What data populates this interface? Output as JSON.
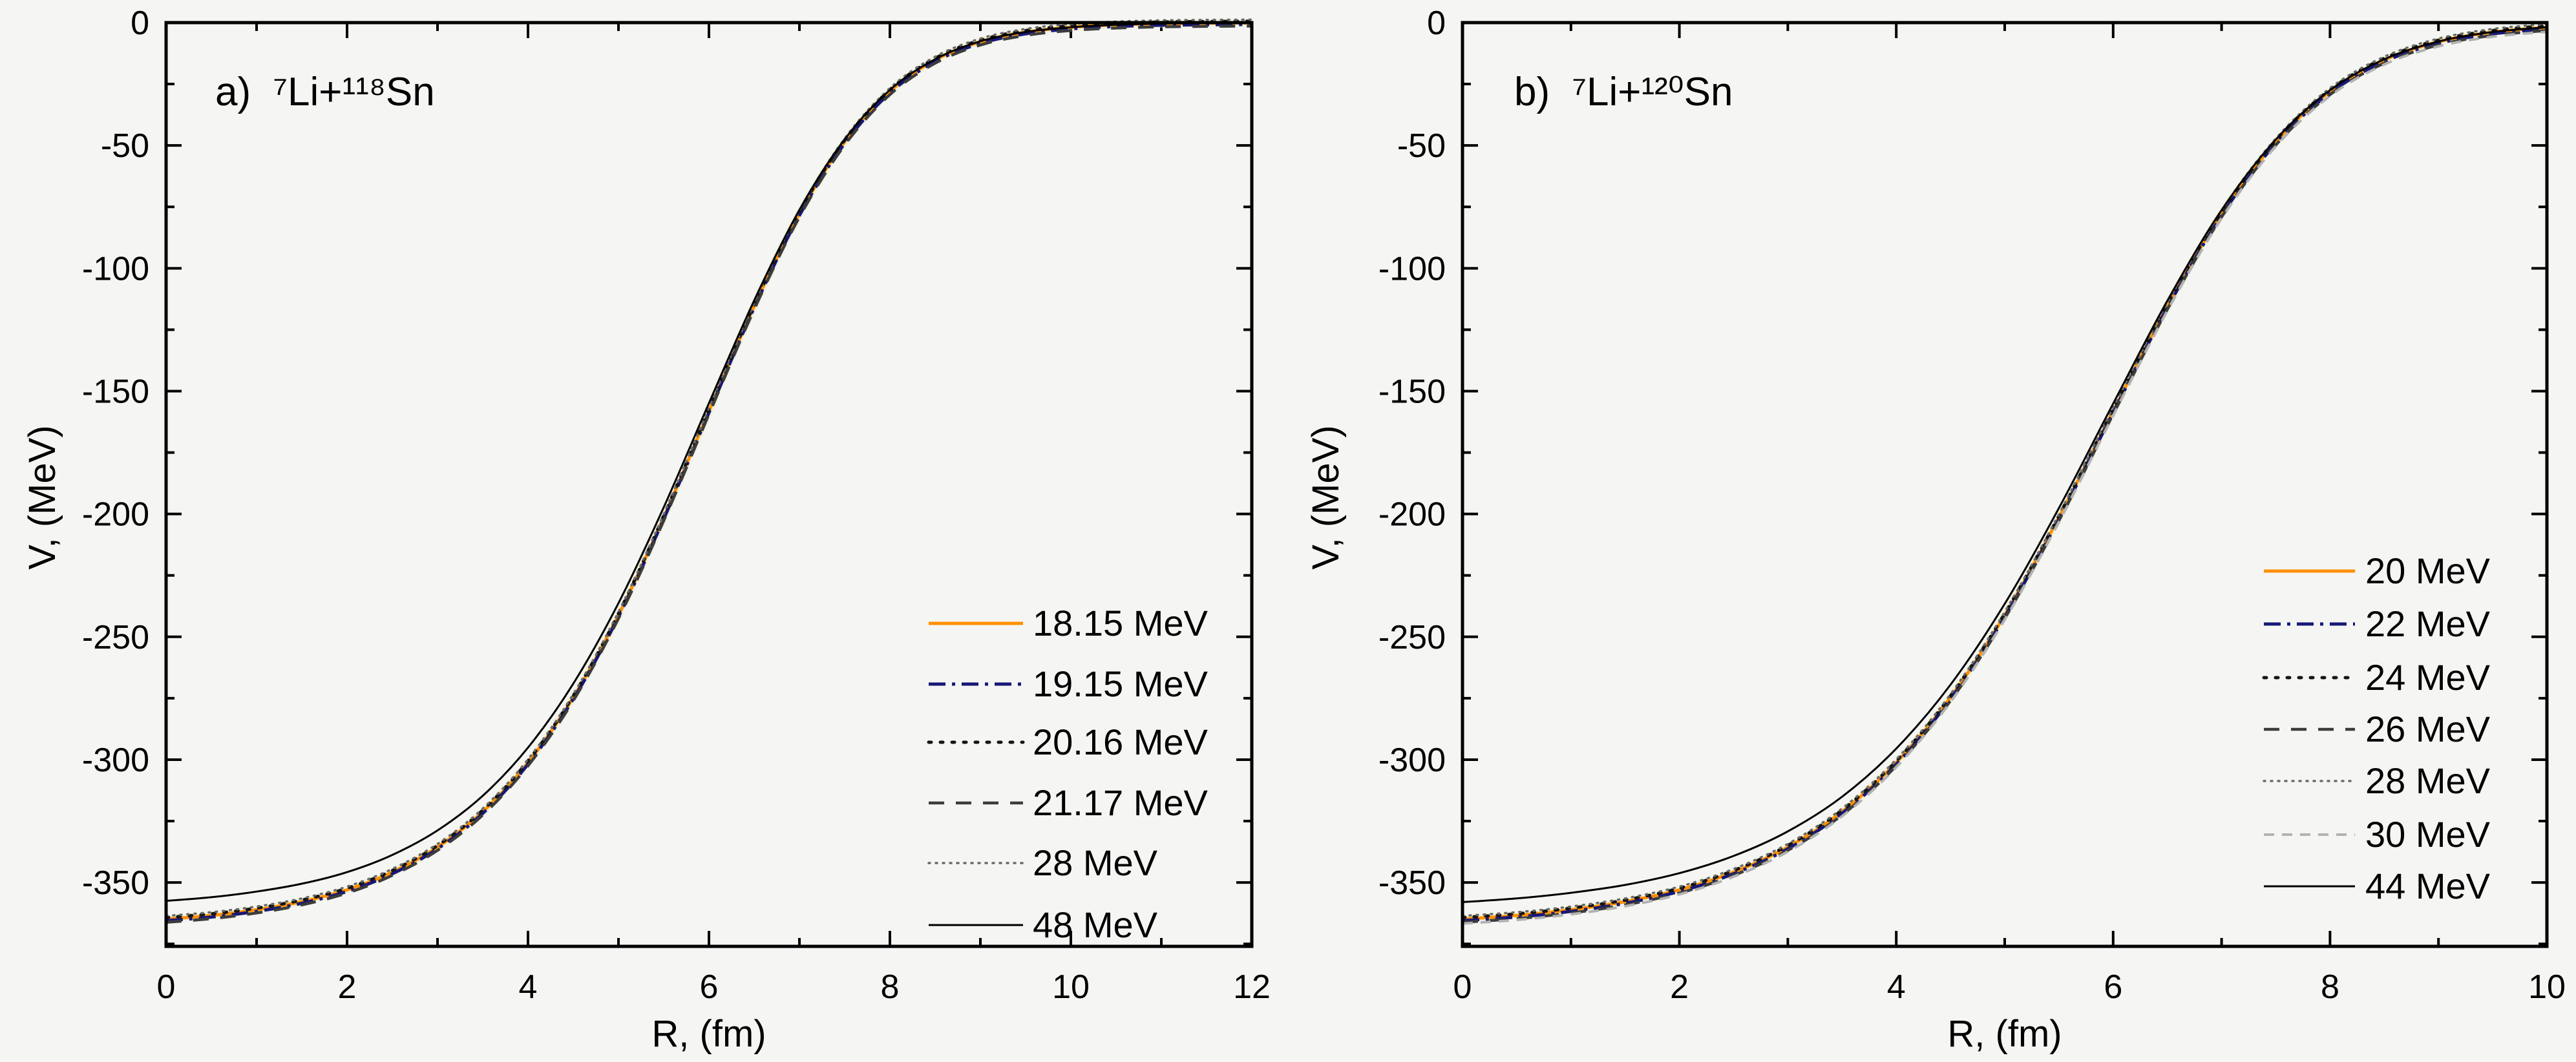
{
  "figure": {
    "background": "#f5f5f3",
    "frame_color": "#000000",
    "tick_color": "#000000",
    "text_color": "#000000",
    "halo_artifact_color": "#edf2d2"
  },
  "chart_data": [
    {
      "type": "line",
      "panel_label": "a",
      "title": "a)  ⁷Li+¹¹⁸Sn",
      "xlabel": "R, (fm)",
      "ylabel": "V, (MeV)",
      "xlim": [
        0,
        12
      ],
      "ylim": [
        -376,
        0
      ],
      "xticks": [
        0,
        2,
        4,
        6,
        8,
        10,
        12
      ],
      "xminorticks": [
        1,
        3,
        5,
        7,
        9,
        11
      ],
      "yticks": [
        0,
        -50,
        -100,
        -150,
        -200,
        -250,
        -300,
        -350
      ],
      "yminorticks": [
        -25,
        -75,
        -125,
        -175,
        -225,
        -275,
        -325,
        -375
      ],
      "grid": false,
      "legend_position": "lower right",
      "x_fm": [
        0,
        0.5,
        1,
        1.5,
        2,
        2.5,
        3,
        3.5,
        4,
        4.5,
        5,
        5.5,
        6,
        6.5,
        7,
        7.5,
        8,
        8.5,
        9,
        9.5,
        10,
        10.5,
        11,
        11.5,
        12
      ],
      "profiles": {
        "bundle": [
          -364.9,
          -363.4,
          -361.1,
          -357.8,
          -353.0,
          -345.8,
          -335.6,
          -321.2,
          -301.2,
          -274.7,
          -241.2,
          -201.4,
          -158.1,
          -115.4,
          -77.8,
          -48.5,
          -28.0,
          -15.2,
          -7.8,
          -3.9,
          -1.9,
          -0.9,
          -0.4,
          -0.2,
          -0.1
        ],
        "shallow": [
          -357.5,
          -356.0,
          -353.7,
          -350.5,
          -345.8,
          -338.8,
          -328.8,
          -314.7,
          -295.1,
          -269.1,
          -236.3,
          -197.3,
          -154.9,
          -113.1,
          -76.2,
          -47.5,
          -27.4,
          -14.9,
          -7.6,
          -3.8,
          -1.9,
          -0.9,
          -0.4,
          -0.2,
          -0.1
        ]
      },
      "series": [
        {
          "label": "18.15 MeV",
          "color": "#ff9000",
          "line_style": "solid",
          "width": 5,
          "profile": "bundle"
        },
        {
          "label": "19.15 MeV",
          "color": "#181878",
          "line_style": "dashdot",
          "width": 5,
          "profile": "bundle"
        },
        {
          "label": "20.16 MeV",
          "color": "#141414",
          "line_style": "dot",
          "width": 5,
          "profile": "bundle"
        },
        {
          "label": "21.17 MeV",
          "color": "#3c3c3c",
          "line_style": "dash",
          "width": 4.5,
          "profile": "bundle"
        },
        {
          "label": "28 MeV",
          "color": "#6a6a6a",
          "line_style": "finedot",
          "width": 3.5,
          "profile": "bundle"
        },
        {
          "label": "48 MeV",
          "color": "#000000",
          "line_style": "solid",
          "width": 3,
          "profile": "shallow"
        }
      ]
    },
    {
      "type": "line",
      "panel_label": "b",
      "title": "b)  ⁷Li+¹²⁰Sn",
      "xlabel": "R, (fm)",
      "ylabel": "V, (MeV)",
      "xlim": [
        0,
        10
      ],
      "ylim": [
        -376,
        0
      ],
      "xticks": [
        0,
        2,
        4,
        6,
        8,
        10
      ],
      "xminorticks": [
        1,
        3,
        5,
        7,
        9
      ],
      "yticks": [
        0,
        -50,
        -100,
        -150,
        -200,
        -250,
        -300,
        -350
      ],
      "yminorticks": [
        -25,
        -75,
        -125,
        -175,
        -225,
        -275,
        -325,
        -375
      ],
      "grid": false,
      "legend_position": "lower right",
      "x_fm": [
        0,
        0.5,
        1,
        1.5,
        2,
        2.5,
        3,
        3.5,
        4,
        4.5,
        5,
        5.5,
        6,
        6.5,
        7,
        7.5,
        8,
        8.5,
        9,
        9.5,
        10
      ],
      "profiles": {
        "bundle": [
          -364.9,
          -363.4,
          -361.1,
          -357.8,
          -353.0,
          -345.8,
          -335.6,
          -321.2,
          -301.2,
          -274.7,
          -241.2,
          -201.4,
          -158.1,
          -115.4,
          -77.8,
          -48.5,
          -28.0,
          -15.2,
          -7.8,
          -3.9,
          -1.9
        ],
        "shallow": [
          -358.0,
          -356.5,
          -354.2,
          -351.0,
          -346.2,
          -339.2,
          -329.2,
          -315.1,
          -295.5,
          -269.5,
          -236.6,
          -197.6,
          -155.1,
          -113.2,
          -76.3,
          -47.6,
          -27.5,
          -14.9,
          -7.7,
          -3.8,
          -1.9
        ]
      },
      "series": [
        {
          "label": "20 MeV",
          "color": "#ff9000",
          "line_style": "solid",
          "width": 5,
          "profile": "bundle"
        },
        {
          "label": "22 MeV",
          "color": "#181878",
          "line_style": "dashdot",
          "width": 5,
          "profile": "bundle"
        },
        {
          "label": "24 MeV",
          "color": "#141414",
          "line_style": "dot",
          "width": 5,
          "profile": "bundle"
        },
        {
          "label": "26 MeV",
          "color": "#3c3c3c",
          "line_style": "dash",
          "width": 4.5,
          "profile": "bundle"
        },
        {
          "label": "28 MeV",
          "color": "#6a6a6a",
          "line_style": "finedot",
          "width": 3.5,
          "profile": "bundle"
        },
        {
          "label": "30 MeV",
          "color": "#b2b2b2",
          "line_style": "shortdash",
          "width": 4,
          "profile": "bundle"
        },
        {
          "label": "44 MeV",
          "color": "#000000",
          "line_style": "solid",
          "width": 3,
          "profile": "shallow"
        }
      ]
    }
  ]
}
